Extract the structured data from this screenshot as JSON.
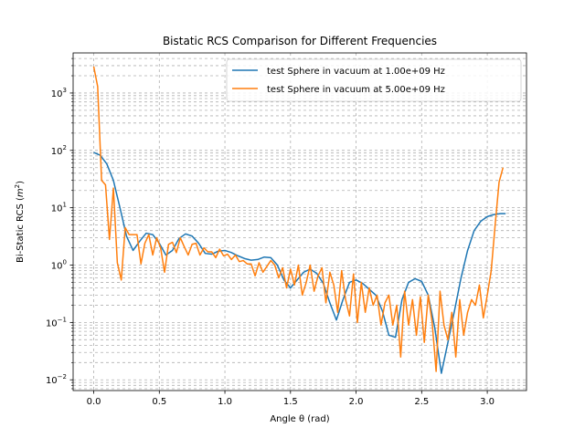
{
  "chart_data": {
    "type": "line",
    "title": "Bistatic RCS Comparison for Different Frequencies",
    "xlabel": "Angle θ (rad)",
    "ylabel_prefix": "Bi-Static RCS (",
    "ylabel_unit_base": "m",
    "ylabel_unit_exp": "2",
    "ylabel_suffix": ")",
    "xlim": [
      -0.157,
      3.299
    ],
    "ylim": [
      0.0065,
      5000
    ],
    "yscale": "log",
    "grid": true,
    "legend_position": "upper right",
    "x_ticks": [
      {
        "value": 0.0,
        "label": "0.0"
      },
      {
        "value": 0.5,
        "label": "0.5"
      },
      {
        "value": 1.0,
        "label": "1.0"
      },
      {
        "value": 1.5,
        "label": "1.5"
      },
      {
        "value": 2.0,
        "label": "2.0"
      },
      {
        "value": 2.5,
        "label": "2.5"
      },
      {
        "value": 3.0,
        "label": "3.0"
      }
    ],
    "y_ticks": [
      {
        "value": 0.01,
        "base": "10",
        "exp": "−2"
      },
      {
        "value": 0.1,
        "base": "10",
        "exp": "−1"
      },
      {
        "value": 1,
        "base": "10",
        "exp": "0"
      },
      {
        "value": 10,
        "base": "10",
        "exp": "1"
      },
      {
        "value": 100,
        "base": "10",
        "exp": "2"
      },
      {
        "value": 1000,
        "base": "10",
        "exp": "3"
      }
    ],
    "series": [
      {
        "name": "test Sphere in vacuum at 1.00e+09 Hz",
        "color": "#1f77b4",
        "x": [
          0.0,
          0.05,
          0.1,
          0.15,
          0.2,
          0.25,
          0.3,
          0.35,
          0.4,
          0.45,
          0.5,
          0.55,
          0.6,
          0.65,
          0.7,
          0.75,
          0.8,
          0.85,
          0.9,
          0.95,
          1.0,
          1.05,
          1.1,
          1.15,
          1.2,
          1.25,
          1.3,
          1.35,
          1.4,
          1.45,
          1.5,
          1.55,
          1.6,
          1.65,
          1.7,
          1.75,
          1.8,
          1.85,
          1.9,
          1.95,
          2.0,
          2.05,
          2.1,
          2.15,
          2.2,
          2.25,
          2.3,
          2.35,
          2.4,
          2.45,
          2.5,
          2.55,
          2.6,
          2.65,
          2.7,
          2.75,
          2.8,
          2.85,
          2.9,
          2.95,
          3.0,
          3.05,
          3.1,
          3.14
        ],
        "y": [
          92,
          82,
          58,
          30,
          10,
          3.2,
          1.8,
          2.6,
          3.6,
          3.4,
          2.4,
          1.5,
          1.8,
          2.9,
          3.5,
          3.2,
          2.4,
          1.6,
          1.55,
          1.75,
          1.8,
          1.65,
          1.45,
          1.3,
          1.22,
          1.25,
          1.38,
          1.35,
          1.0,
          0.55,
          0.4,
          0.55,
          0.75,
          0.85,
          0.72,
          0.48,
          0.22,
          0.11,
          0.25,
          0.5,
          0.55,
          0.48,
          0.38,
          0.3,
          0.16,
          0.06,
          0.055,
          0.25,
          0.5,
          0.58,
          0.52,
          0.3,
          0.08,
          0.013,
          0.045,
          0.16,
          0.6,
          1.8,
          4.0,
          5.8,
          7.0,
          7.6,
          7.9,
          7.9
        ]
      },
      {
        "name": "test Sphere in vacuum at 5.00e+09 Hz",
        "color": "#ff7f0e",
        "x": [
          0.0,
          0.03,
          0.06,
          0.09,
          0.12,
          0.15,
          0.18,
          0.21,
          0.24,
          0.27,
          0.3,
          0.33,
          0.36,
          0.39,
          0.42,
          0.45,
          0.48,
          0.51,
          0.54,
          0.57,
          0.6,
          0.63,
          0.66,
          0.69,
          0.72,
          0.75,
          0.78,
          0.81,
          0.84,
          0.87,
          0.9,
          0.93,
          0.96,
          0.99,
          1.02,
          1.05,
          1.08,
          1.11,
          1.14,
          1.17,
          1.2,
          1.23,
          1.26,
          1.29,
          1.32,
          1.35,
          1.38,
          1.41,
          1.44,
          1.47,
          1.5,
          1.53,
          1.56,
          1.59,
          1.62,
          1.65,
          1.68,
          1.71,
          1.74,
          1.77,
          1.8,
          1.83,
          1.86,
          1.89,
          1.92,
          1.95,
          1.98,
          2.01,
          2.04,
          2.07,
          2.1,
          2.13,
          2.16,
          2.19,
          2.22,
          2.25,
          2.28,
          2.31,
          2.34,
          2.37,
          2.4,
          2.43,
          2.46,
          2.49,
          2.52,
          2.55,
          2.58,
          2.61,
          2.64,
          2.67,
          2.7,
          2.73,
          2.76,
          2.79,
          2.82,
          2.85,
          2.88,
          2.91,
          2.94,
          2.97,
          3.0,
          3.03,
          3.06,
          3.09,
          3.12
        ],
        "y": [
          2900,
          1300,
          30,
          25,
          2.8,
          22,
          1.1,
          0.55,
          4.5,
          3.4,
          3.4,
          3.4,
          1.05,
          2.4,
          3.4,
          1.5,
          3.0,
          2.0,
          0.75,
          2.3,
          2.5,
          1.65,
          3.0,
          2.1,
          1.5,
          2.3,
          2.4,
          1.5,
          2.0,
          1.7,
          1.7,
          1.35,
          1.9,
          1.45,
          1.55,
          1.25,
          1.5,
          1.15,
          1.2,
          1.05,
          1.05,
          0.65,
          1.1,
          0.75,
          0.95,
          1.2,
          1.0,
          0.6,
          0.9,
          0.4,
          0.85,
          0.45,
          1.0,
          0.3,
          0.5,
          1.0,
          0.35,
          0.65,
          0.9,
          0.22,
          0.75,
          0.45,
          0.15,
          0.8,
          0.25,
          0.13,
          0.7,
          0.1,
          0.5,
          0.15,
          0.4,
          0.2,
          0.3,
          0.09,
          0.22,
          0.3,
          0.09,
          0.2,
          0.025,
          0.35,
          0.09,
          0.25,
          0.06,
          0.28,
          0.045,
          0.3,
          0.1,
          0.014,
          0.35,
          0.09,
          0.05,
          0.15,
          0.025,
          0.25,
          0.06,
          0.15,
          0.25,
          0.2,
          0.45,
          0.12,
          0.3,
          0.8,
          5.0,
          28,
          50
        ]
      }
    ]
  }
}
